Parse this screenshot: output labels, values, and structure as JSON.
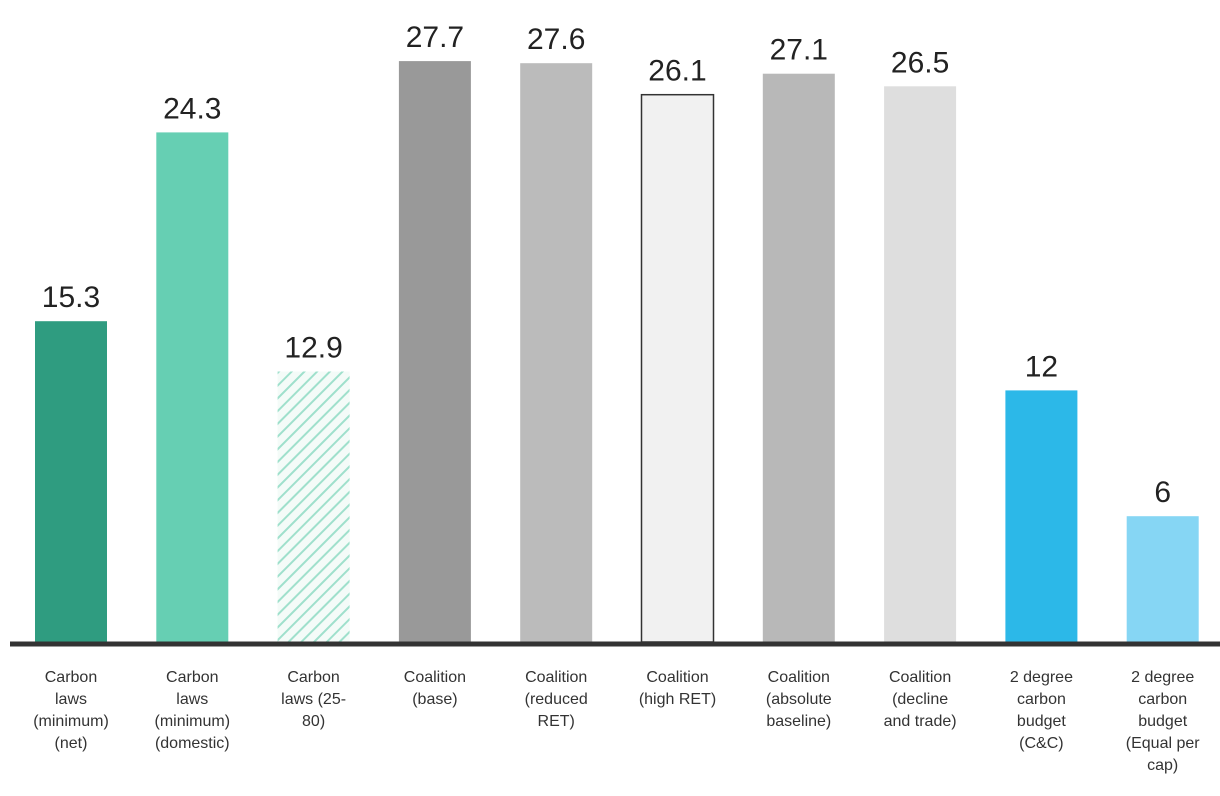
{
  "chart_data": {
    "type": "bar",
    "title": "",
    "xlabel": "",
    "ylabel": "",
    "ylim": [
      0,
      30
    ],
    "grid": false,
    "legend": "none",
    "categories": [
      "Carbon laws (minimum) (net)",
      "Carbon laws (minimum) (domestic)",
      "Carbon laws (25-80)",
      "Coalition (base)",
      "Coalition (reduced RET)",
      "Coalition (high RET)",
      "Coalition (absolute baseline)",
      "Coalition (decline and trade)",
      "2 degree carbon budget (C&C)",
      "2 degree carbon budget (Equal per cap)"
    ],
    "category_lines": [
      [
        "Carbon",
        "laws",
        "(minimum)",
        "(net)"
      ],
      [
        "Carbon",
        "laws",
        "(minimum)",
        "(domestic)"
      ],
      [
        "Carbon",
        "laws (25-",
        "80)"
      ],
      [
        "Coalition",
        "(base)"
      ],
      [
        "Coalition",
        "(reduced",
        "RET)"
      ],
      [
        "Coalition",
        "(high RET)"
      ],
      [
        "Coalition",
        "(absolute",
        "baseline)"
      ],
      [
        "Coalition",
        "(decline",
        "and trade)"
      ],
      [
        "2 degree",
        "carbon",
        "budget",
        "(C&C)"
      ],
      [
        "2 degree",
        "carbon",
        "budget",
        "(Equal per",
        "cap)"
      ]
    ],
    "values": [
      15.3,
      24.3,
      12.9,
      27.7,
      27.6,
      26.1,
      27.1,
      26.5,
      12,
      6
    ],
    "value_labels": [
      "15.3",
      "24.3",
      "12.9",
      "27.7",
      "27.6",
      "26.1",
      "27.1",
      "26.5",
      "12",
      "6"
    ],
    "colors": [
      "#2f9c80",
      "#66cfb3",
      "#9fe0cc",
      "#999999",
      "#bbbbbb",
      "#f1f1f1",
      "#b8b8b8",
      "#dedede",
      "#2cb8e8",
      "#86d6f4"
    ],
    "patterns": [
      "solid",
      "solid",
      "hatched",
      "solid",
      "solid",
      "solid",
      "solid",
      "solid",
      "solid",
      "solid"
    ],
    "outlined": [
      false,
      false,
      false,
      false,
      false,
      true,
      false,
      false,
      false,
      false
    ]
  }
}
